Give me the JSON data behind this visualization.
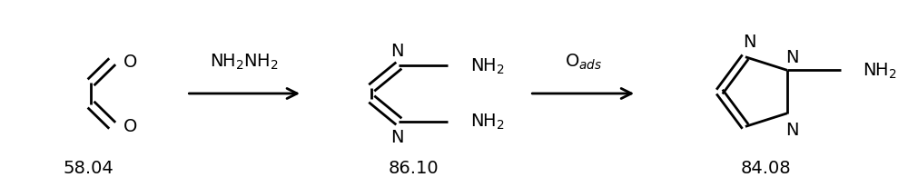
{
  "bg_color": "#ffffff",
  "fig_width": 10.0,
  "fig_height": 2.07,
  "dpi": 100,
  "mw1": "58.04",
  "mw2": "86.10",
  "mw3": "84.08",
  "arrow1_label_top": "NH",
  "arrow1_label_sub": "2",
  "arrow2_label": "O",
  "arrow2_sub": "ads",
  "lw": 2.0,
  "font_size": 13
}
